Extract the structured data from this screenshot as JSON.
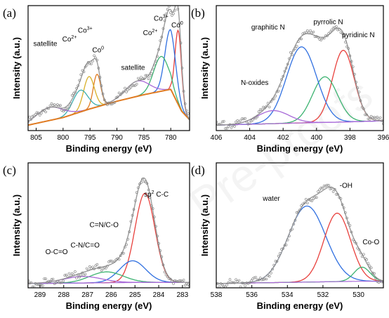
{
  "watermark": "Pre-proofs",
  "colors": {
    "raw": "#8a8a8a",
    "envelope": "#9a9a9a",
    "red": "#e8403c",
    "blue": "#2f6fe0",
    "green": "#3cb371",
    "purple": "#a86ad8",
    "orange": "#e07b22",
    "gold": "#d8b02a",
    "teal": "#3aaeb0"
  },
  "chart_data": [
    {
      "type": "line",
      "panel": "(a)",
      "xlabel": "Binding energy (eV)",
      "ylabel": "Intensity (a.u.)",
      "xlim": [
        806.5,
        776.5
      ],
      "ylim": [
        0,
        1.15
      ],
      "xticks": [
        805,
        800,
        795,
        790,
        785,
        780
      ],
      "background": {
        "name": "",
        "points": [
          [
            806.5,
            0.05
          ],
          [
            800,
            0.12
          ],
          [
            795,
            0.2
          ],
          [
            790,
            0.27
          ],
          [
            785,
            0.33
          ],
          [
            780,
            0.38
          ],
          [
            778,
            0.18
          ],
          [
            776.5,
            0.1
          ]
        ]
      },
      "components": [
        {
          "name": "Co0",
          "center": 778.6,
          "width": 0.6,
          "height": 0.68,
          "color": "#e8403c"
        },
        {
          "name": "Co3+",
          "center": 780.1,
          "width": 1.0,
          "height": 0.55,
          "color": "#2f6fe0"
        },
        {
          "name": "Co2+",
          "center": 781.8,
          "width": 1.4,
          "height": 0.32,
          "color": "#3cb371"
        },
        {
          "name": "satellite",
          "center": 786.2,
          "width": 2.2,
          "height": 0.14,
          "color": "#a86ad8"
        },
        {
          "name": "Co0",
          "center": 793.7,
          "width": 0.7,
          "height": 0.3,
          "color": "#e07b22"
        },
        {
          "name": "Co3+",
          "center": 795.2,
          "width": 1.0,
          "height": 0.3,
          "color": "#d8b02a"
        },
        {
          "name": "Co2+",
          "center": 796.8,
          "width": 1.4,
          "height": 0.2,
          "color": "#3aaeb0"
        },
        {
          "name": "satellite",
          "center": 802.5,
          "width": 2.5,
          "height": 0.12,
          "color": "#a86ad8"
        }
      ],
      "annotations": [
        {
          "text": "satellite",
          "x": 803.3,
          "y": 0.78
        },
        {
          "text": "Co",
          "sup": "2+",
          "x": 798.8,
          "y": 0.82
        },
        {
          "text": "Co",
          "sup": "3+",
          "x": 795.9,
          "y": 0.9
        },
        {
          "text": "Co",
          "sup": "0",
          "x": 793.5,
          "y": 0.72
        },
        {
          "text": "satellite",
          "x": 787.0,
          "y": 0.56
        },
        {
          "text": "Co",
          "sup": "3+",
          "x": 781.8,
          "y": 1.01
        },
        {
          "text": "Co",
          "sup": "2+",
          "x": 783.8,
          "y": 0.88
        },
        {
          "text": "Co",
          "sup": "0",
          "x": 778.8,
          "y": 0.95
        }
      ]
    },
    {
      "type": "line",
      "panel": "(b)",
      "xlabel": "Binding energy (eV)",
      "ylabel": "Intensity (a.u.)",
      "xlim": [
        406,
        396
      ],
      "ylim": [
        0,
        1.15
      ],
      "xticks": [
        406,
        404,
        402,
        400,
        398,
        396
      ],
      "background": {
        "name": "",
        "points": [
          [
            406,
            0.05
          ],
          [
            401,
            0.07
          ],
          [
            398,
            0.08
          ],
          [
            396,
            0.09
          ]
        ]
      },
      "components": [
        {
          "name": "pyridinic N",
          "center": 398.4,
          "width": 0.65,
          "height": 0.66,
          "color": "#e8403c"
        },
        {
          "name": "pyrrolic N",
          "center": 399.5,
          "width": 0.75,
          "height": 0.42,
          "color": "#3cb371"
        },
        {
          "name": "graphitic N",
          "center": 400.9,
          "width": 0.9,
          "height": 0.7,
          "color": "#2f6fe0"
        },
        {
          "name": "N-oxides",
          "center": 402.6,
          "width": 0.95,
          "height": 0.12,
          "color": "#a86ad8"
        }
      ],
      "annotations": [
        {
          "text": "graphitic N",
          "x": 402.9,
          "y": 0.93
        },
        {
          "text": "pyrrolic N",
          "x": 399.3,
          "y": 0.98
        },
        {
          "text": "pyridinic N",
          "x": 397.5,
          "y": 0.86
        },
        {
          "text": "N-oxides",
          "x": 403.7,
          "y": 0.42
        }
      ]
    },
    {
      "type": "line",
      "panel": "(c)",
      "xlabel": "Binding energy (eV)",
      "ylabel": "Intensity (a.u.)",
      "xlim": [
        289.5,
        282.7
      ],
      "ylim": [
        0,
        1.15
      ],
      "xticks": [
        289,
        288,
        287,
        286,
        285,
        284,
        283
      ],
      "background": {
        "name": "",
        "points": [
          [
            289.5,
            0.04
          ],
          [
            284.5,
            0.05
          ],
          [
            282.7,
            0.05
          ]
        ]
      },
      "components": [
        {
          "name": "sp2 C-C",
          "center": 284.58,
          "width": 0.42,
          "height": 0.82,
          "color": "#e8403c"
        },
        {
          "name": "C=N/C-O",
          "center": 285.1,
          "width": 0.55,
          "height": 0.2,
          "color": "#2f6fe0"
        },
        {
          "name": "C-N/C=O",
          "center": 286.2,
          "width": 0.7,
          "height": 0.1,
          "color": "#3cb371"
        },
        {
          "name": "O-C=O",
          "center": 287.2,
          "width": 0.8,
          "height": 0.06,
          "color": "#a86ad8"
        }
      ],
      "annotations": [
        {
          "text": "sp",
          "sup": "2",
          "tail": " C-C",
          "x": 284.1,
          "y": 0.84
        },
        {
          "text": "C=N/C-O",
          "x": 286.3,
          "y": 0.56
        },
        {
          "text": "C-N/C=O",
          "x": 287.1,
          "y": 0.37
        },
        {
          "text": "O-C=O",
          "x": 288.3,
          "y": 0.31
        }
      ]
    },
    {
      "type": "line",
      "panel": "(d)",
      "xlabel": "Binding energy (eV)",
      "ylabel": "Intensity (a.u.)",
      "xlim": [
        538,
        528.6
      ],
      "ylim": [
        0,
        1.15
      ],
      "xticks": [
        538,
        536,
        534,
        532,
        530
      ],
      "background": {
        "name": "",
        "points": [
          [
            538,
            0.04
          ],
          [
            534,
            0.05
          ],
          [
            530,
            0.06
          ],
          [
            528.6,
            0.06
          ]
        ]
      },
      "components": [
        {
          "name": "water",
          "center": 532.9,
          "width": 1.05,
          "height": 0.7,
          "color": "#2f6fe0"
        },
        {
          "name": "-OH",
          "center": 531.2,
          "width": 0.75,
          "height": 0.63,
          "color": "#e8403c"
        },
        {
          "name": "Co-O",
          "center": 529.8,
          "width": 0.45,
          "height": 0.13,
          "color": "#3cb371"
        }
      ],
      "annotations": [
        {
          "text": "water",
          "x": 534.9,
          "y": 0.8
        },
        {
          "text": "-OH",
          "x": 530.7,
          "y": 0.92
        },
        {
          "text": "Co-O",
          "x": 529.3,
          "y": 0.4
        }
      ]
    }
  ]
}
